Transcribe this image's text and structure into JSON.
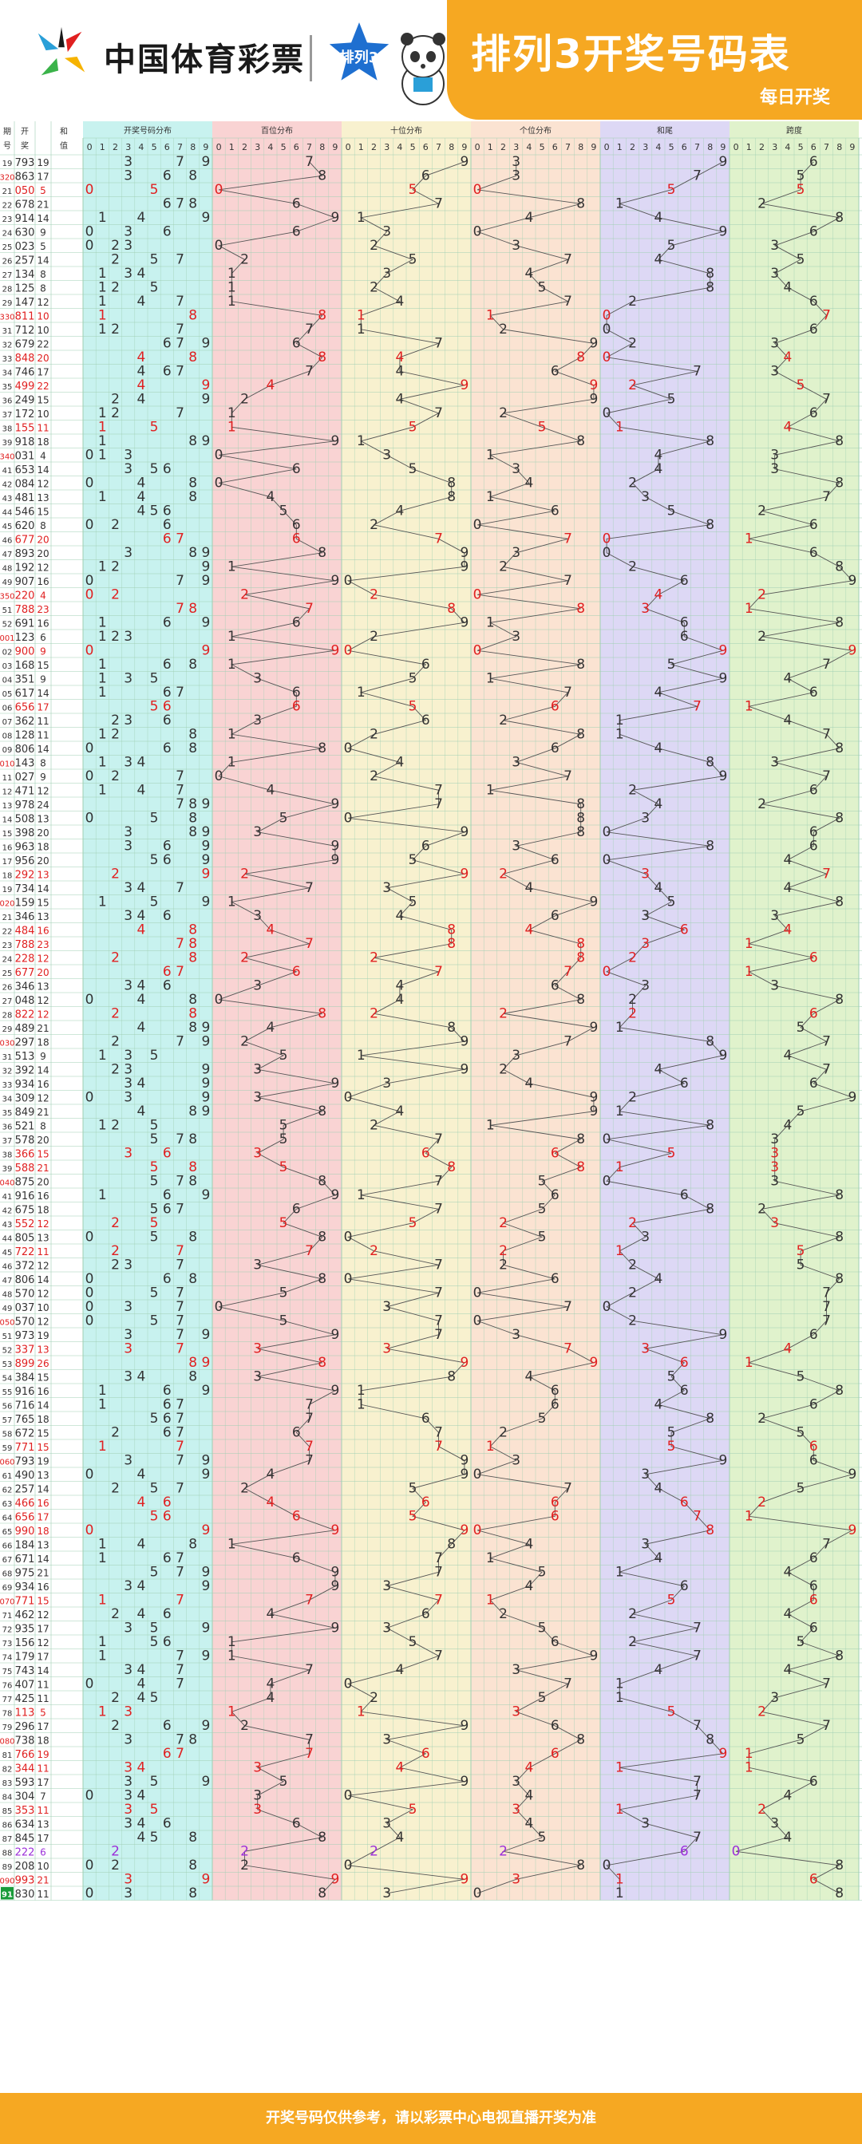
{
  "brand": {
    "name": "中国体育彩票",
    "badge_text": "排列3"
  },
  "title": "排列3开奖号码表",
  "subtitle": "每日开奖",
  "footer": "开奖号码仅供参考，请以彩票中心电视直播开奖为准",
  "colors": {
    "band": "#f6a822",
    "red": "#e02020",
    "black": "#333333",
    "purple": "#9b30d9",
    "sec_dist": "#c8f2ef",
    "sec_hundreds": "#f9d3d3",
    "sec_tens": "#f8f1cf",
    "sec_units": "#fbe3d2",
    "sec_sumtail": "#ddd8f5",
    "sec_span": "#e0f2cc",
    "grid": "#9fcfb3"
  },
  "table_headers": {
    "period": "期号",
    "number": "开奖",
    "sum": "和值",
    "sections": [
      "开奖号码分布",
      "百位分布",
      "十位分布",
      "个位分布",
      "和尾",
      "跨度"
    ],
    "digits": [
      "0",
      "1",
      "2",
      "3",
      "4",
      "5",
      "6",
      "7",
      "8",
      "9"
    ]
  },
  "chart_data": {
    "type": "table",
    "rows": [
      {
        "p": "19",
        "n": "793",
        "s": "19"
      },
      {
        "p": "320",
        "n": "863",
        "s": "17"
      },
      {
        "p": "21",
        "n": "050",
        "s": "5"
      },
      {
        "p": "22",
        "n": "678",
        "s": "21"
      },
      {
        "p": "23",
        "n": "914",
        "s": "14"
      },
      {
        "p": "24",
        "n": "630",
        "s": "9"
      },
      {
        "p": "25",
        "n": "023",
        "s": "5"
      },
      {
        "p": "26",
        "n": "257",
        "s": "14"
      },
      {
        "p": "27",
        "n": "134",
        "s": "8"
      },
      {
        "p": "28",
        "n": "125",
        "s": "8"
      },
      {
        "p": "29",
        "n": "147",
        "s": "12"
      },
      {
        "p": "330",
        "n": "811",
        "s": "10"
      },
      {
        "p": "31",
        "n": "712",
        "s": "10"
      },
      {
        "p": "32",
        "n": "679",
        "s": "22"
      },
      {
        "p": "33",
        "n": "848",
        "s": "20"
      },
      {
        "p": "34",
        "n": "746",
        "s": "17"
      },
      {
        "p": "35",
        "n": "499",
        "s": "22"
      },
      {
        "p": "36",
        "n": "249",
        "s": "15"
      },
      {
        "p": "37",
        "n": "172",
        "s": "10"
      },
      {
        "p": "38",
        "n": "155",
        "s": "11"
      },
      {
        "p": "39",
        "n": "918",
        "s": "18"
      },
      {
        "p": "340",
        "n": "031",
        "s": "4"
      },
      {
        "p": "41",
        "n": "653",
        "s": "14"
      },
      {
        "p": "42",
        "n": "084",
        "s": "12"
      },
      {
        "p": "43",
        "n": "481",
        "s": "13"
      },
      {
        "p": "44",
        "n": "546",
        "s": "15"
      },
      {
        "p": "45",
        "n": "620",
        "s": "8"
      },
      {
        "p": "46",
        "n": "677",
        "s": "20"
      },
      {
        "p": "47",
        "n": "893",
        "s": "20"
      },
      {
        "p": "48",
        "n": "192",
        "s": "12"
      },
      {
        "p": "49",
        "n": "907",
        "s": "16"
      },
      {
        "p": "350",
        "n": "220",
        "s": "4"
      },
      {
        "p": "51",
        "n": "788",
        "s": "23"
      },
      {
        "p": "52",
        "n": "691",
        "s": "16"
      },
      {
        "p": "001",
        "n": "123",
        "s": "6"
      },
      {
        "p": "02",
        "n": "900",
        "s": "9"
      },
      {
        "p": "03",
        "n": "168",
        "s": "15"
      },
      {
        "p": "04",
        "n": "351",
        "s": "9"
      },
      {
        "p": "05",
        "n": "617",
        "s": "14"
      },
      {
        "p": "06",
        "n": "656",
        "s": "17"
      },
      {
        "p": "07",
        "n": "362",
        "s": "11"
      },
      {
        "p": "08",
        "n": "128",
        "s": "11"
      },
      {
        "p": "09",
        "n": "806",
        "s": "14"
      },
      {
        "p": "010",
        "n": "143",
        "s": "8"
      },
      {
        "p": "11",
        "n": "027",
        "s": "9"
      },
      {
        "p": "12",
        "n": "471",
        "s": "12"
      },
      {
        "p": "13",
        "n": "978",
        "s": "24"
      },
      {
        "p": "14",
        "n": "508",
        "s": "13"
      },
      {
        "p": "15",
        "n": "398",
        "s": "20"
      },
      {
        "p": "16",
        "n": "963",
        "s": "18"
      },
      {
        "p": "17",
        "n": "956",
        "s": "20"
      },
      {
        "p": "18",
        "n": "292",
        "s": "13"
      },
      {
        "p": "19",
        "n": "734",
        "s": "14"
      },
      {
        "p": "020",
        "n": "159",
        "s": "15"
      },
      {
        "p": "21",
        "n": "346",
        "s": "13"
      },
      {
        "p": "22",
        "n": "484",
        "s": "16"
      },
      {
        "p": "23",
        "n": "788",
        "s": "23"
      },
      {
        "p": "24",
        "n": "228",
        "s": "12"
      },
      {
        "p": "25",
        "n": "677",
        "s": "20"
      },
      {
        "p": "26",
        "n": "346",
        "s": "13"
      },
      {
        "p": "27",
        "n": "048",
        "s": "12"
      },
      {
        "p": "28",
        "n": "822",
        "s": "12"
      },
      {
        "p": "29",
        "n": "489",
        "s": "21"
      },
      {
        "p": "030",
        "n": "297",
        "s": "18"
      },
      {
        "p": "31",
        "n": "513",
        "s": "9"
      },
      {
        "p": "32",
        "n": "392",
        "s": "14"
      },
      {
        "p": "33",
        "n": "934",
        "s": "16"
      },
      {
        "p": "34",
        "n": "309",
        "s": "12"
      },
      {
        "p": "35",
        "n": "849",
        "s": "21"
      },
      {
        "p": "36",
        "n": "521",
        "s": "8"
      },
      {
        "p": "37",
        "n": "578",
        "s": "20"
      },
      {
        "p": "38",
        "n": "366",
        "s": "15"
      },
      {
        "p": "39",
        "n": "588",
        "s": "21"
      },
      {
        "p": "040",
        "n": "875",
        "s": "20"
      },
      {
        "p": "41",
        "n": "916",
        "s": "16"
      },
      {
        "p": "42",
        "n": "675",
        "s": "18"
      },
      {
        "p": "43",
        "n": "552",
        "s": "12"
      },
      {
        "p": "44",
        "n": "805",
        "s": "13"
      },
      {
        "p": "45",
        "n": "722",
        "s": "11"
      },
      {
        "p": "46",
        "n": "372",
        "s": "12"
      },
      {
        "p": "47",
        "n": "806",
        "s": "14"
      },
      {
        "p": "48",
        "n": "570",
        "s": "12"
      },
      {
        "p": "49",
        "n": "037",
        "s": "10"
      },
      {
        "p": "050",
        "n": "570",
        "s": "12"
      },
      {
        "p": "51",
        "n": "973",
        "s": "19"
      },
      {
        "p": "52",
        "n": "337",
        "s": "13"
      },
      {
        "p": "53",
        "n": "899",
        "s": "26"
      },
      {
        "p": "54",
        "n": "384",
        "s": "15"
      },
      {
        "p": "55",
        "n": "916",
        "s": "16"
      },
      {
        "p": "56",
        "n": "716",
        "s": "14"
      },
      {
        "p": "57",
        "n": "765",
        "s": "18"
      },
      {
        "p": "58",
        "n": "672",
        "s": "15"
      },
      {
        "p": "59",
        "n": "771",
        "s": "15"
      },
      {
        "p": "060",
        "n": "793",
        "s": "19"
      },
      {
        "p": "61",
        "n": "490",
        "s": "13"
      },
      {
        "p": "62",
        "n": "257",
        "s": "14"
      },
      {
        "p": "63",
        "n": "466",
        "s": "16"
      },
      {
        "p": "64",
        "n": "656",
        "s": "17"
      },
      {
        "p": "65",
        "n": "990",
        "s": "18"
      },
      {
        "p": "66",
        "n": "184",
        "s": "13"
      },
      {
        "p": "67",
        "n": "671",
        "s": "14"
      },
      {
        "p": "68",
        "n": "975",
        "s": "21"
      },
      {
        "p": "69",
        "n": "934",
        "s": "16"
      },
      {
        "p": "070",
        "n": "771",
        "s": "15"
      },
      {
        "p": "71",
        "n": "462",
        "s": "12"
      },
      {
        "p": "72",
        "n": "935",
        "s": "17"
      },
      {
        "p": "73",
        "n": "156",
        "s": "12"
      },
      {
        "p": "74",
        "n": "179",
        "s": "17"
      },
      {
        "p": "75",
        "n": "743",
        "s": "14"
      },
      {
        "p": "76",
        "n": "407",
        "s": "11"
      },
      {
        "p": "77",
        "n": "425",
        "s": "11"
      },
      {
        "p": "78",
        "n": "113",
        "s": "5"
      },
      {
        "p": "79",
        "n": "296",
        "s": "17"
      },
      {
        "p": "080",
        "n": "738",
        "s": "18"
      },
      {
        "p": "81",
        "n": "766",
        "s": "19"
      },
      {
        "p": "82",
        "n": "344",
        "s": "11"
      },
      {
        "p": "83",
        "n": "593",
        "s": "17"
      },
      {
        "p": "84",
        "n": "304",
        "s": "7"
      },
      {
        "p": "85",
        "n": "353",
        "s": "11"
      },
      {
        "p": "86",
        "n": "634",
        "s": "13"
      },
      {
        "p": "87",
        "n": "845",
        "s": "17"
      },
      {
        "p": "88",
        "n": "222",
        "s": "6"
      },
      {
        "p": "89",
        "n": "208",
        "s": "10"
      },
      {
        "p": "090",
        "n": "993",
        "s": "21"
      },
      {
        "p": "91",
        "n": "830",
        "s": "11"
      }
    ]
  }
}
